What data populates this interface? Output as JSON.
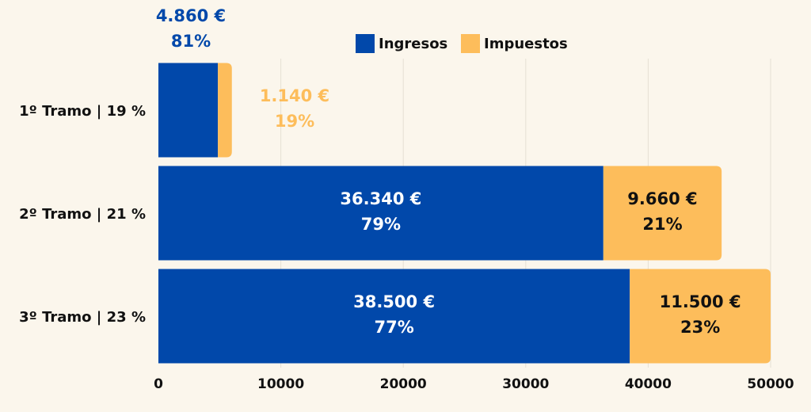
{
  "colors": {
    "background": "#fbf6ec",
    "ingresos": "#0148aa",
    "impuestos": "#fdbd5b",
    "grid": "#e6e0d4",
    "text": "#111111",
    "label_light": "#ffffff"
  },
  "legend": {
    "ingresos": "Ingresos",
    "impuestos": "Impuestos"
  },
  "chart_data": {
    "type": "bar",
    "orientation": "horizontal",
    "stacked": true,
    "categories": [
      "1º Tramo | 19 %",
      "2º Tramo | 21 %",
      "3º Tramo | 23 %"
    ],
    "series": [
      {
        "name": "Ingresos",
        "values": [
          4860,
          36340,
          38500
        ],
        "labels": [
          [
            "4.860 €",
            "81%"
          ],
          [
            "36.340 €",
            "79%"
          ],
          [
            "38.500 €",
            "77%"
          ]
        ]
      },
      {
        "name": "Impuestos",
        "values": [
          1140,
          9660,
          11500
        ],
        "labels": [
          [
            "1.140 €",
            "19%"
          ],
          [
            "9.660 €",
            "21%"
          ],
          [
            "11.500 €",
            "23%"
          ]
        ]
      }
    ],
    "x_ticks": [
      "0",
      "10000",
      "20000",
      "30000",
      "40000",
      "50000"
    ],
    "xlim": [
      0,
      50000
    ],
    "grid": true,
    "legend_position": "top-center"
  }
}
